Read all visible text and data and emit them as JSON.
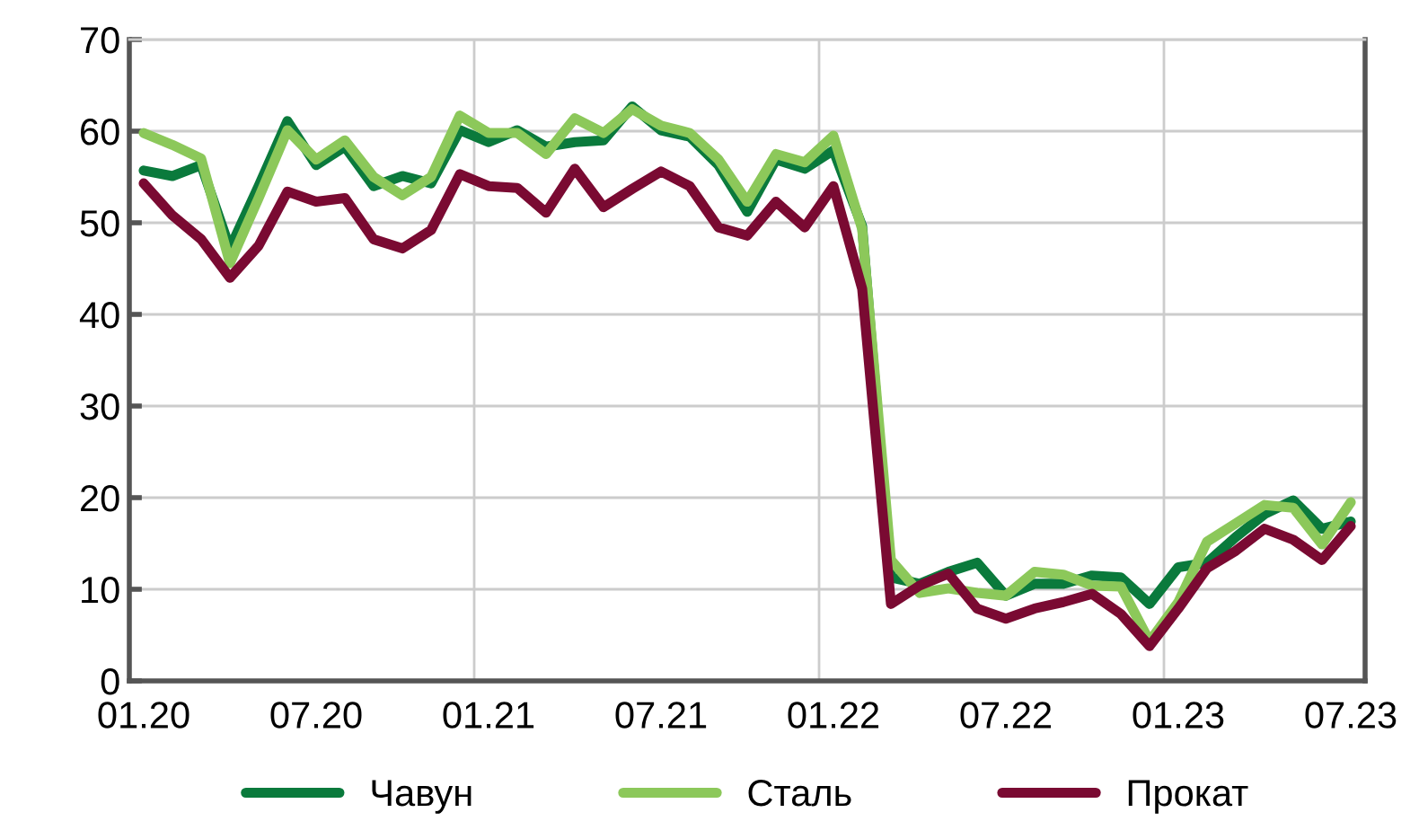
{
  "chart_data": {
    "type": "line",
    "categories": [
      "01.20",
      null,
      null,
      null,
      null,
      null,
      "07.20",
      null,
      null,
      null,
      null,
      null,
      "01.21",
      null,
      null,
      null,
      null,
      null,
      "07.21",
      null,
      null,
      null,
      null,
      null,
      "01.22",
      null,
      null,
      null,
      null,
      null,
      "07.22",
      null,
      null,
      null,
      null,
      null,
      "01.23",
      null,
      null,
      null,
      null,
      null,
      "07.23"
    ],
    "series": [
      {
        "name": "Чавун",
        "color": "#0a7a3c",
        "values": [
          55.7,
          55.1,
          56.3,
          47.2,
          54,
          61.1,
          56.3,
          58.3,
          54,
          55.1,
          54.3,
          60.1,
          58.8,
          60.1,
          58.3,
          58.8,
          59,
          62.7,
          60.1,
          59.4,
          56.3,
          51.2,
          56.9,
          55.9,
          57.9,
          49.6,
          11.3,
          10.6,
          11.9,
          12.9,
          9.3,
          10.6,
          10.6,
          11.5,
          11.3,
          8.4,
          12.4,
          12.9,
          15.7,
          18.2,
          19.7,
          16.6,
          17.4
        ]
      },
      {
        "name": "Сталь",
        "color": "#8cc85a",
        "values": [
          59.8,
          58.5,
          57,
          45.6,
          52.7,
          60.1,
          56.9,
          59,
          55,
          53,
          55,
          61.7,
          59.8,
          59.8,
          57.5,
          61.4,
          59.8,
          62.4,
          60.6,
          59.8,
          56.9,
          52.3,
          57.5,
          56.6,
          59.5,
          49.3,
          13.2,
          9.6,
          10.1,
          9.6,
          9.3,
          11.9,
          11.6,
          10.4,
          10.3,
          4.3,
          8.6,
          15.2,
          17.2,
          19.2,
          18.9,
          14.9,
          19.5
        ]
      },
      {
        "name": "Прокат",
        "color": "#7a0a32",
        "values": [
          54.3,
          50.8,
          48.2,
          44,
          47.5,
          53.4,
          52.3,
          52.7,
          48.2,
          47.2,
          49.2,
          55.3,
          54,
          53.8,
          51.1,
          55.9,
          51.7,
          53.7,
          55.6,
          54,
          49.5,
          48.6,
          52.3,
          49.5,
          54,
          42.8,
          8.4,
          10.4,
          11.7,
          7.9,
          6.8,
          7.9,
          8.6,
          9.5,
          7.3,
          3.8,
          7.9,
          12.3,
          14.2,
          16.6,
          15.4,
          13.2,
          16.9
        ]
      }
    ],
    "ylim": [
      0,
      70
    ],
    "yticks": [
      0,
      10,
      20,
      30,
      40,
      50,
      60,
      70
    ],
    "grid": true,
    "legend": "bottom",
    "line_style": "solid",
    "marker": "none"
  }
}
